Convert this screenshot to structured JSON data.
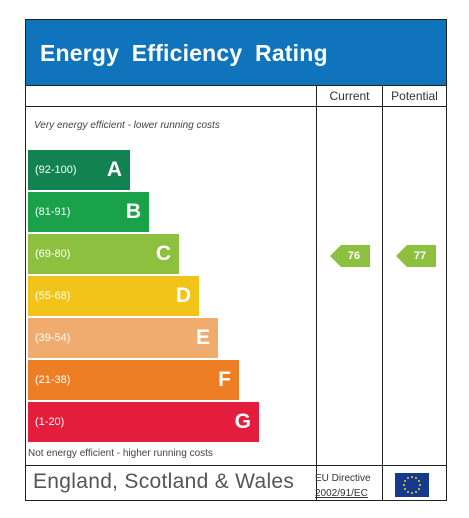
{
  "header": {
    "title": "Energy  Efficiency  Rating"
  },
  "columns": {
    "current": "Current",
    "potential": "Potential"
  },
  "notes": {
    "top": "Very energy efficient - lower running costs",
    "bottom": "Not energy efficient - higher running costs"
  },
  "bands": [
    {
      "range": "(92-100)",
      "letter": "A",
      "color": "#138251"
    },
    {
      "range": "(81-91)",
      "letter": "B",
      "color": "#1aa24b"
    },
    {
      "range": "(69-80)",
      "letter": "C",
      "color": "#8dc03f"
    },
    {
      "range": "(55-68)",
      "letter": "D",
      "color": "#f2c41a"
    },
    {
      "range": "(39-54)",
      "letter": "E",
      "color": "#f0ab6f"
    },
    {
      "range": "(21-38)",
      "letter": "F",
      "color": "#ee7e24"
    },
    {
      "range": "(1-20)",
      "letter": "G",
      "color": "#e41d3d"
    }
  ],
  "ratings": {
    "current": {
      "value": "76",
      "color": "#8dc03f"
    },
    "potential": {
      "value": "77",
      "color": "#8dc03f"
    }
  },
  "footer": {
    "region": "England, Scotland & Wales",
    "directive_line1": "EU Directive",
    "directive_line2": "2002/91/EC"
  }
}
